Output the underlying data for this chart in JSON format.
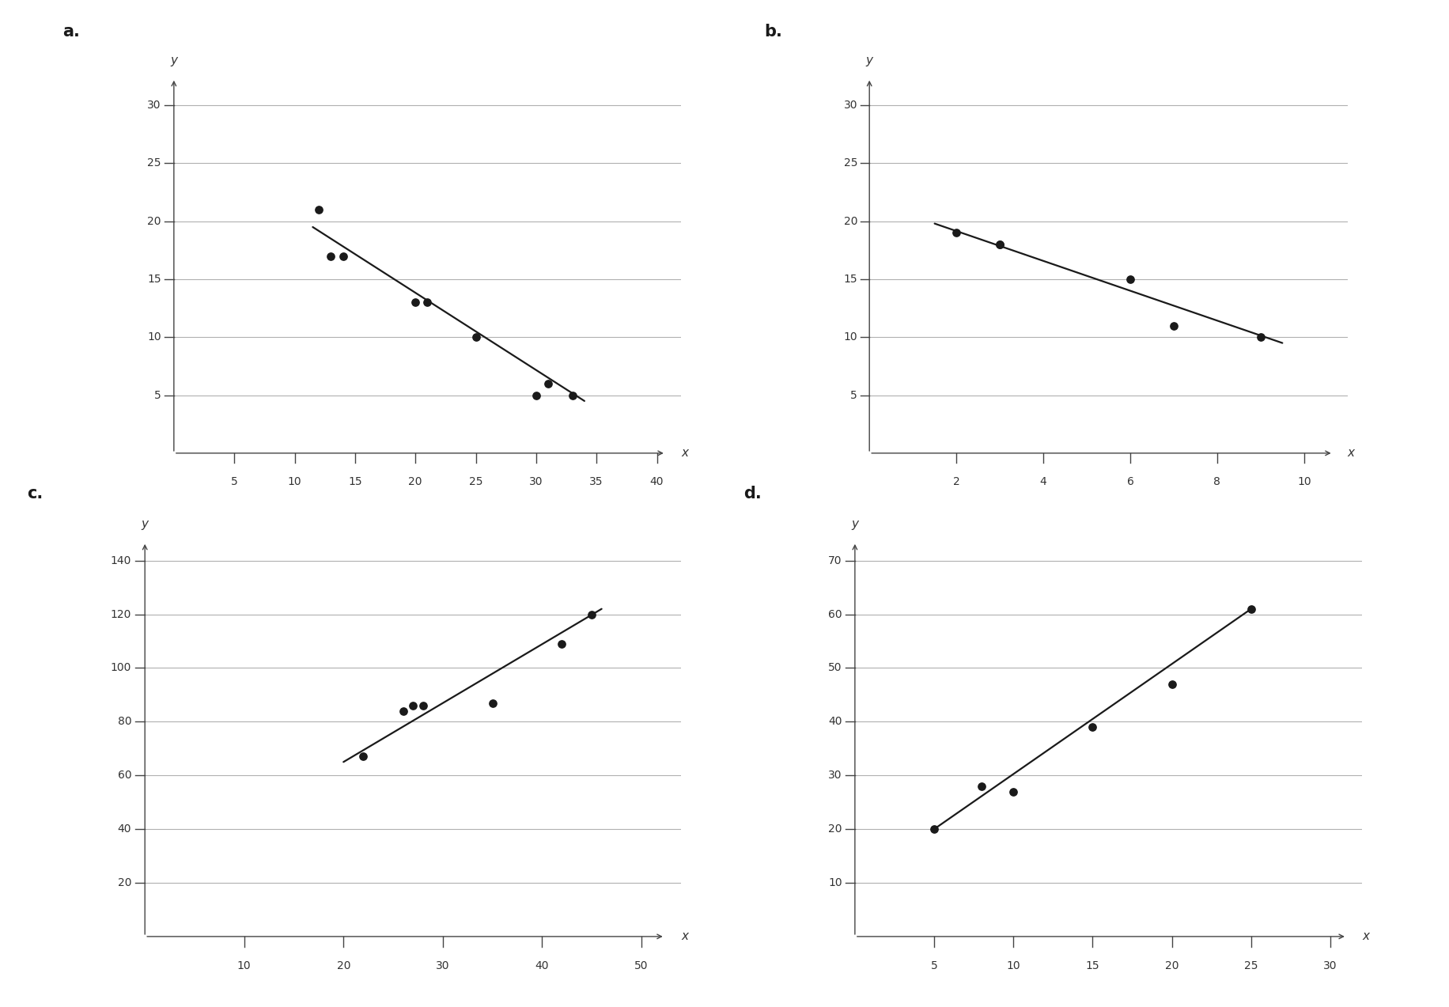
{
  "plots": [
    {
      "label": "a.",
      "points_x": [
        12,
        13,
        14,
        20,
        21,
        25,
        30,
        31,
        33
      ],
      "points_y": [
        21,
        17,
        17,
        13,
        13,
        10,
        5,
        6,
        5
      ],
      "line_x": [
        11.5,
        34.0
      ],
      "line_y": [
        19.5,
        4.5
      ],
      "xlim": [
        0,
        42
      ],
      "ylim": [
        0,
        33
      ],
      "xticks": [
        5,
        10,
        15,
        20,
        25,
        30,
        35,
        40
      ],
      "yticks": [
        5,
        10,
        15,
        20,
        25,
        30
      ],
      "xaxis_start": 0,
      "yaxis_start": 0
    },
    {
      "label": "b.",
      "points_x": [
        2,
        3,
        3,
        6,
        7,
        9
      ],
      "points_y": [
        19,
        18,
        18,
        15,
        11,
        10
      ],
      "line_x": [
        1.5,
        9.5
      ],
      "line_y": [
        19.8,
        9.5
      ],
      "xlim": [
        0,
        11
      ],
      "ylim": [
        0,
        33
      ],
      "xticks": [
        2,
        4,
        6,
        8,
        10
      ],
      "yticks": [
        5,
        10,
        15,
        20,
        25,
        30
      ],
      "xaxis_start": 0,
      "yaxis_start": 0
    },
    {
      "label": "c.",
      "points_x": [
        22,
        26,
        27,
        28,
        35,
        42,
        45
      ],
      "points_y": [
        67,
        84,
        86,
        86,
        87,
        109,
        120
      ],
      "line_x": [
        20,
        46
      ],
      "line_y": [
        65,
        122
      ],
      "xlim": [
        0,
        54
      ],
      "ylim": [
        0,
        150
      ],
      "xticks": [
        10,
        20,
        30,
        40,
        50
      ],
      "yticks": [
        20,
        40,
        60,
        80,
        100,
        120,
        140
      ],
      "xaxis_start": 0,
      "yaxis_start": 0
    },
    {
      "label": "d.",
      "points_x": [
        5,
        8,
        10,
        15,
        20,
        25
      ],
      "points_y": [
        20,
        28,
        27,
        39,
        47,
        61
      ],
      "line_x": [
        5,
        25
      ],
      "line_y": [
        20,
        61
      ],
      "xlim": [
        0,
        32
      ],
      "ylim": [
        0,
        75
      ],
      "xticks": [
        5,
        10,
        15,
        20,
        25,
        30
      ],
      "yticks": [
        10,
        20,
        30,
        40,
        50,
        60,
        70
      ],
      "xaxis_start": 0,
      "yaxis_start": 0
    }
  ],
  "dot_color": "#1a1a1a",
  "line_color": "#1a1a1a",
  "grid_color": "#b0b0b0",
  "dot_size": 45,
  "line_width": 1.6,
  "label_fontsize": 15,
  "tick_fontsize": 10,
  "axis_label_fontsize": 11,
  "spine_color": "#444444",
  "background_color": "#ffffff"
}
